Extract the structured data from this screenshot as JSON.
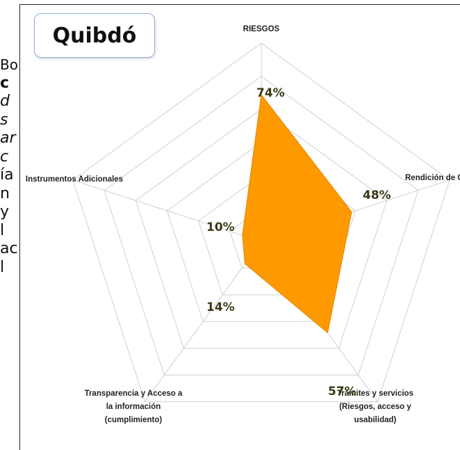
{
  "chart_data": {
    "type": "radar",
    "city": "Quibdó",
    "axes": [
      "RIESGOS",
      "Rendición de Cu",
      "Trámites y servicios (Riesgos, acceso y usabilidad)",
      "Transparencia y Acceso a la información (cumplimiento)",
      "Instrumentos Adicionales"
    ],
    "values": [
      74,
      48,
      57,
      14,
      10
    ],
    "value_labels": [
      "74%",
      "48%",
      "57%",
      "14%",
      "10%"
    ],
    "range": [
      0,
      100
    ],
    "grid_levels": 6,
    "fill_color": "#ff9900",
    "legend": false
  },
  "background_text": [
    "Bo",
    "c",
    "d",
    "s",
    "ar",
    "c",
    "ía",
    "n",
    "y",
    "l",
    "ac",
    "",
    "l"
  ],
  "colors": {
    "grid": "#cfcfcf",
    "fill": "#ff9900",
    "label": "#3b3b16"
  }
}
